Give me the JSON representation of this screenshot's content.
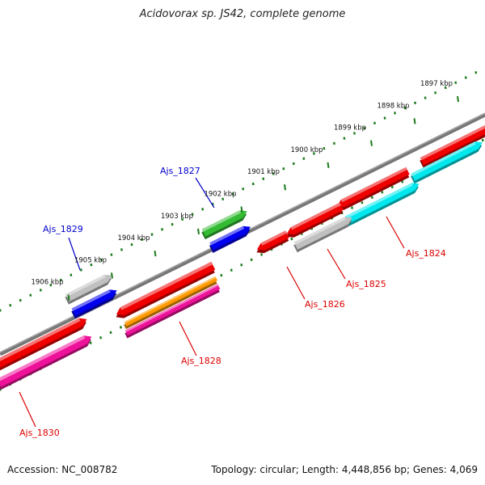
{
  "header": {
    "title": "Acidovorax sp. JS42, complete genome"
  },
  "footer": {
    "accession": "Accession: NC_008782",
    "topology": "Topology: circular; Length: 4,448,856 bp; Genes: 4,069"
  },
  "ruler_ticks": [
    {
      "label": "1897 kbp",
      "pos": 1897
    },
    {
      "label": "1898 kbp",
      "pos": 1898
    },
    {
      "label": "1899 kbp",
      "pos": 1899
    },
    {
      "label": "1900 kbp",
      "pos": 1900
    },
    {
      "label": "1901 kbp",
      "pos": 1901
    },
    {
      "label": "1902 kbp",
      "pos": 1902
    },
    {
      "label": "1903 kbp",
      "pos": 1903
    },
    {
      "label": "1904 kbp",
      "pos": 1904
    },
    {
      "label": "1905 kbp",
      "pos": 1905
    },
    {
      "label": "1906 kbp",
      "pos": 1906
    }
  ],
  "gene_labels": [
    {
      "name": "Ajs_1824",
      "color": "#dd0000"
    },
    {
      "name": "Ajs_1825",
      "color": "#dd0000"
    },
    {
      "name": "Ajs_1826",
      "color": "#dd0000"
    },
    {
      "name": "Ajs_1827",
      "color": "#0000cc"
    },
    {
      "name": "Ajs_1828",
      "color": "#dd0000"
    },
    {
      "name": "Ajs_1829",
      "color": "#0000cc"
    },
    {
      "name": "Ajs_1830",
      "color": "#dd0000"
    }
  ],
  "colors": {
    "backbone": "#777777",
    "ruler": "#1a7a1a",
    "gene_red": "#ee0000",
    "gene_blue": "#0000ee",
    "gene_cyan": "#00e8ee",
    "gene_grey": "#c0c0c0",
    "gene_green": "#33bb33",
    "gene_orange": "#ff9900",
    "gene_pink": "#ee1199",
    "forward_label": "#dd0000",
    "reverse_label": "#0000cc"
  }
}
